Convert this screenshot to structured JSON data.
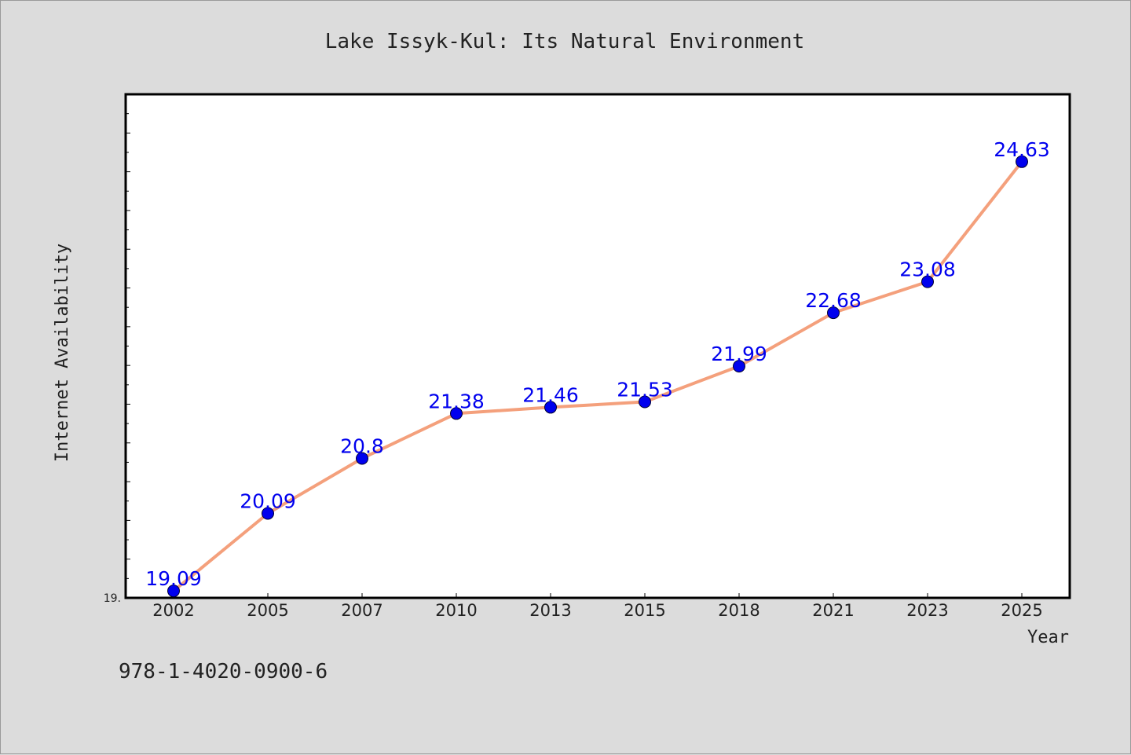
{
  "chart_data": {
    "type": "line",
    "title": "Lake Issyk-Kul: Its Natural Environment",
    "xlabel": "Year",
    "ylabel": "Internet Availability",
    "categories": [
      "2002",
      "2005",
      "2007",
      "2010",
      "2013",
      "2015",
      "2018",
      "2021",
      "2023",
      "2025"
    ],
    "series": [
      {
        "values": [
          19.09,
          20.09,
          20.8,
          21.38,
          21.46,
          21.53,
          21.99,
          22.68,
          23.08,
          24.63
        ],
        "labels": [
          "19.09",
          "20.09",
          "20.8",
          "21.38",
          "21.46",
          "21.53",
          "21.99",
          "22.68",
          "23.08",
          "24.63"
        ],
        "line_color": "#f4a07c",
        "marker_color": "#0000ee"
      }
    ],
    "ylim": [
      19.0,
      25.5
    ],
    "y_tick_labels": [
      {
        "value": 19.0,
        "label": "19."
      }
    ],
    "grid": false,
    "legend": "none"
  },
  "footer": {
    "isbn": "978-1-4020-0900-6"
  },
  "colors": {
    "background": "#dcdcdc",
    "plot_background": "#ffffff",
    "axis": "#000000"
  }
}
